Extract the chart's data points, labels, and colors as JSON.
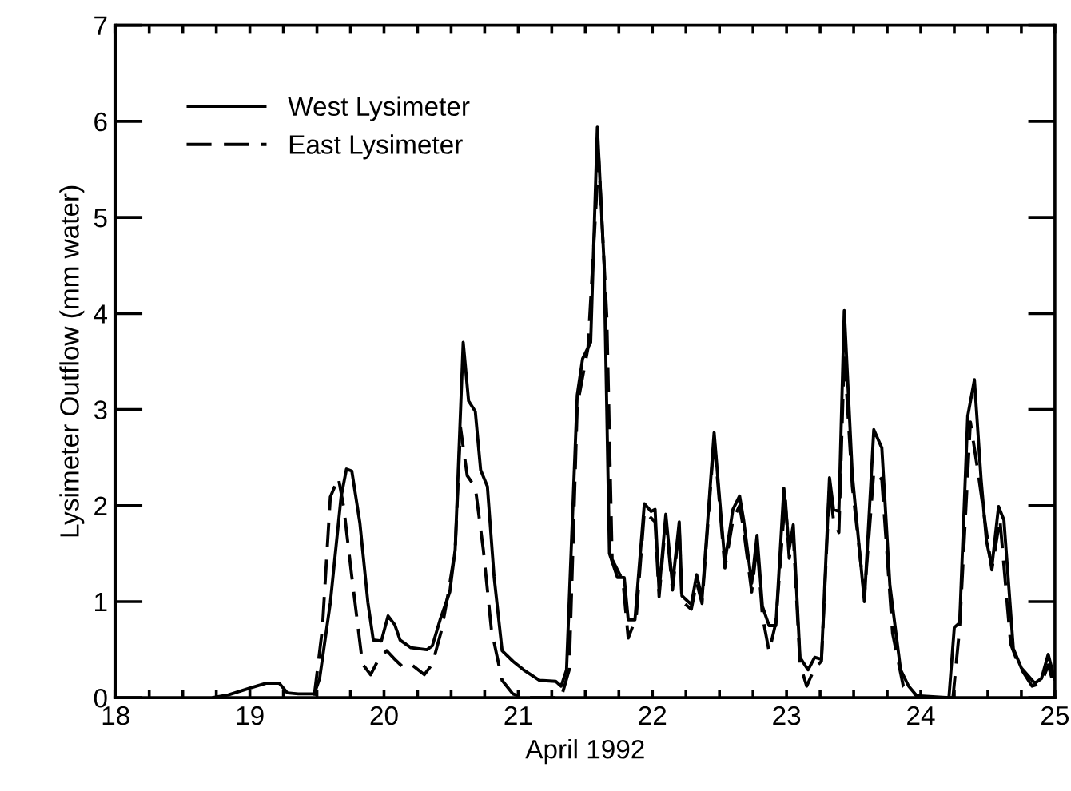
{
  "chart_data": {
    "type": "line",
    "xlabel": "April 1992",
    "ylabel": "Lysimeter Outflow (mm water)",
    "xlim": [
      18,
      25
    ],
    "ylim": [
      0,
      7
    ],
    "xticks": [
      18,
      {
        "value": 18.25,
        "label": null
      },
      {
        "value": 18.5,
        "label": null
      },
      {
        "value": 18.75,
        "label": null
      },
      19,
      {
        "value": 19.25,
        "label": null
      },
      {
        "value": 19.5,
        "label": null
      },
      {
        "value": 19.75,
        "label": null
      },
      20,
      {
        "value": 20.25,
        "label": null
      },
      {
        "value": 20.5,
        "label": null
      },
      {
        "value": 20.75,
        "label": null
      },
      21,
      {
        "value": 21.25,
        "label": null
      },
      {
        "value": 21.5,
        "label": null
      },
      {
        "value": 21.75,
        "label": null
      },
      22,
      {
        "value": 22.25,
        "label": null
      },
      {
        "value": 22.5,
        "label": null
      },
      {
        "value": 22.75,
        "label": null
      },
      23,
      {
        "value": 23.25,
        "label": null
      },
      {
        "value": 23.5,
        "label": null
      },
      {
        "value": 23.75,
        "label": null
      },
      24,
      {
        "value": 24.25,
        "label": null
      },
      {
        "value": 24.5,
        "label": null
      },
      {
        "value": 24.75,
        "label": null
      },
      25
    ],
    "yticks": [
      0,
      1,
      2,
      3,
      4,
      5,
      6,
      7
    ],
    "grid": false,
    "legend": "top left",
    "marker": "none",
    "series": [
      {
        "name": "West Lysimeter",
        "color": "#000000",
        "line_style": "solid",
        "x": [
          18.72,
          18.84,
          19.0,
          19.12,
          19.22,
          19.28,
          19.36,
          19.48,
          19.52,
          19.6,
          19.68,
          19.72,
          19.76,
          19.82,
          19.88,
          19.92,
          19.98,
          20.03,
          20.08,
          20.12,
          20.2,
          20.32,
          20.36,
          20.42,
          20.49,
          20.53,
          20.59,
          20.63,
          20.68,
          20.72,
          20.77,
          20.82,
          20.88,
          20.96,
          21.04,
          21.16,
          21.28,
          21.32,
          21.36,
          21.44,
          21.48,
          21.54,
          21.59,
          21.64,
          21.68,
          21.74,
          21.79,
          21.82,
          21.87,
          21.94,
          21.99,
          22.02,
          22.05,
          22.1,
          22.15,
          22.2,
          22.22,
          22.29,
          22.33,
          22.37,
          22.46,
          22.54,
          22.6,
          22.65,
          22.68,
          22.74,
          22.78,
          22.82,
          22.87,
          22.92,
          22.98,
          23.02,
          23.05,
          23.1,
          23.16,
          23.21,
          23.26,
          23.32,
          23.35,
          23.39,
          23.43,
          23.49,
          23.58,
          23.65,
          23.71,
          23.77,
          23.85,
          23.91,
          23.97,
          24.21,
          24.25,
          24.29,
          24.35,
          24.4,
          24.45,
          24.49,
          24.53,
          24.58,
          24.62,
          24.69,
          24.75,
          24.85,
          24.9,
          24.95,
          25.0
        ],
        "values": [
          0,
          0.03,
          0.1,
          0.15,
          0.15,
          0.05,
          0.04,
          0.04,
          0.2,
          0.99,
          2.09,
          2.38,
          2.36,
          1.82,
          0.99,
          0.6,
          0.59,
          0.85,
          0.76,
          0.6,
          0.52,
          0.5,
          0.54,
          0.82,
          1.1,
          1.54,
          3.7,
          3.09,
          2.98,
          2.37,
          2.2,
          1.26,
          0.49,
          0.38,
          0.29,
          0.18,
          0.17,
          0.12,
          0.29,
          3.15,
          3.53,
          3.7,
          5.94,
          4.52,
          1.5,
          1.25,
          1.25,
          0.81,
          0.81,
          2.02,
          1.94,
          1.96,
          1.11,
          1.91,
          1.17,
          1.83,
          1.06,
          0.97,
          1.28,
          1.03,
          2.76,
          1.41,
          1.96,
          2.1,
          1.85,
          1.19,
          1.69,
          0.95,
          0.75,
          0.75,
          2.18,
          1.55,
          1.8,
          0.42,
          0.29,
          0.42,
          0.4,
          2.29,
          1.96,
          1.94,
          4.03,
          2.32,
          1.0,
          2.79,
          2.6,
          1.17,
          0.29,
          0.12,
          0.02,
          0,
          0.73,
          0.78,
          2.93,
          3.31,
          2.27,
          1.63,
          1.36,
          1.99,
          1.85,
          0.51,
          0.31,
          0.15,
          0.2,
          0.45,
          0.18
        ]
      },
      {
        "name": "East Lysimeter",
        "color": "#000000",
        "line_style": "dashed",
        "x": [
          19.48,
          19.54,
          19.6,
          19.66,
          19.7,
          19.76,
          19.84,
          19.9,
          19.96,
          20.02,
          20.08,
          20.14,
          20.2,
          20.3,
          20.36,
          20.43,
          20.48,
          20.53,
          20.57,
          20.62,
          20.68,
          20.74,
          20.8,
          20.88,
          20.96,
          21.04,
          21.32,
          21.38,
          21.44,
          21.52,
          21.6,
          21.66,
          21.7,
          21.78,
          21.82,
          21.88,
          21.94,
          22.02,
          22.05,
          22.1,
          22.15,
          22.2,
          22.22,
          22.29,
          22.33,
          22.37,
          22.46,
          22.54,
          22.6,
          22.65,
          22.68,
          22.74,
          22.78,
          22.82,
          22.87,
          22.92,
          22.99,
          23.02,
          23.05,
          23.1,
          23.15,
          23.21,
          23.26,
          23.32,
          23.35,
          23.39,
          23.43,
          23.49,
          23.58,
          23.65,
          23.71,
          23.79,
          23.87,
          23.99,
          24.24,
          24.29,
          24.37,
          24.43,
          24.53,
          24.59,
          24.67,
          24.73,
          24.83,
          24.9,
          24.95,
          25.0
        ],
        "values": [
          0.02,
          0.71,
          2.09,
          2.29,
          1.98,
          1.26,
          0.35,
          0.24,
          0.4,
          0.49,
          0.4,
          0.32,
          0.35,
          0.24,
          0.35,
          0.71,
          1.1,
          1.54,
          2.81,
          2.31,
          2.19,
          1.54,
          0.71,
          0.18,
          0.04,
          0,
          0,
          0.29,
          3.04,
          3.64,
          5.62,
          3.97,
          1.44,
          1.22,
          0.62,
          0.84,
          1.94,
          1.83,
          1.05,
          1.85,
          1.12,
          1.78,
          1.0,
          0.92,
          1.2,
          0.98,
          2.7,
          1.35,
          1.85,
          2.0,
          1.75,
          1.1,
          1.6,
          0.85,
          0.48,
          0.78,
          2.09,
          1.45,
          1.7,
          0.35,
          0.12,
          0.31,
          0.38,
          2.2,
          1.85,
          1.72,
          3.59,
          2.2,
          1.06,
          2.35,
          2.27,
          0.67,
          0.12,
          0,
          0,
          0.73,
          2.87,
          2.32,
          1.33,
          1.86,
          0.56,
          0.34,
          0.12,
          0.15,
          0.34,
          0.09
        ]
      }
    ]
  }
}
